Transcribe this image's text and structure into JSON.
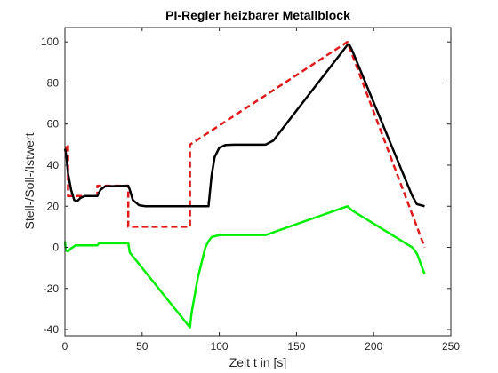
{
  "chart_data": {
    "type": "line",
    "title": "PI-Regler heizbarer Metallblock",
    "xlabel": "Zeit t in [s]",
    "ylabel": "Stell-/Soll-/Istwert",
    "xlim": [
      0,
      250
    ],
    "ylim": [
      -43,
      107
    ],
    "xticks": [
      0,
      50,
      100,
      150,
      200,
      250
    ],
    "yticks": [
      -40,
      -20,
      0,
      20,
      40,
      60,
      80,
      100
    ],
    "grid": false,
    "legend": "none",
    "series": [
      {
        "role": "setpoint",
        "color": "#e31a1c",
        "style": "dashed",
        "points": [
          [
            0,
            47
          ],
          [
            1,
            47
          ],
          [
            1,
            50
          ],
          [
            2,
            50
          ],
          [
            2,
            25
          ],
          [
            21,
            25
          ],
          [
            21,
            30
          ],
          [
            41,
            30
          ],
          [
            41,
            10
          ],
          [
            81,
            10
          ],
          [
            81,
            50
          ],
          [
            183,
            100
          ],
          [
            233,
            0
          ]
        ]
      },
      {
        "role": "actual",
        "color": "#000000",
        "style": "solid",
        "points": [
          [
            0,
            48
          ],
          [
            1,
            44
          ],
          [
            2,
            36
          ],
          [
            4,
            28
          ],
          [
            6,
            23
          ],
          [
            8,
            22.5
          ],
          [
            10,
            24
          ],
          [
            13,
            25
          ],
          [
            21,
            25
          ],
          [
            23,
            28
          ],
          [
            26,
            29.7
          ],
          [
            41,
            30
          ],
          [
            42,
            28
          ],
          [
            44,
            23
          ],
          [
            48,
            20.5
          ],
          [
            52,
            20
          ],
          [
            93,
            20
          ],
          [
            95,
            35
          ],
          [
            97,
            44
          ],
          [
            100,
            48.5
          ],
          [
            104,
            49.8
          ],
          [
            110,
            50
          ],
          [
            130,
            50
          ],
          [
            135,
            52
          ],
          [
            183,
            98.5
          ],
          [
            184,
            99
          ],
          [
            186,
            96
          ],
          [
            225,
            25
          ],
          [
            228,
            21
          ],
          [
            233,
            20
          ]
        ]
      },
      {
        "role": "control",
        "color": "#00ee00",
        "style": "solid",
        "points": [
          [
            0,
            3
          ],
          [
            0.5,
            -1.5
          ],
          [
            2,
            -2
          ],
          [
            4,
            -0.5
          ],
          [
            7,
            1
          ],
          [
            21,
            1
          ],
          [
            22,
            2
          ],
          [
            41,
            2
          ],
          [
            42,
            -2.5
          ],
          [
            81,
            -39
          ],
          [
            82,
            -32
          ],
          [
            86,
            -15
          ],
          [
            91,
            0
          ],
          [
            93,
            3
          ],
          [
            95,
            5
          ],
          [
            100,
            6
          ],
          [
            130,
            6
          ],
          [
            183,
            20
          ],
          [
            186,
            18
          ],
          [
            225,
            0
          ],
          [
            228,
            -3
          ],
          [
            231,
            -9
          ],
          [
            233,
            -13
          ]
        ]
      }
    ]
  }
}
